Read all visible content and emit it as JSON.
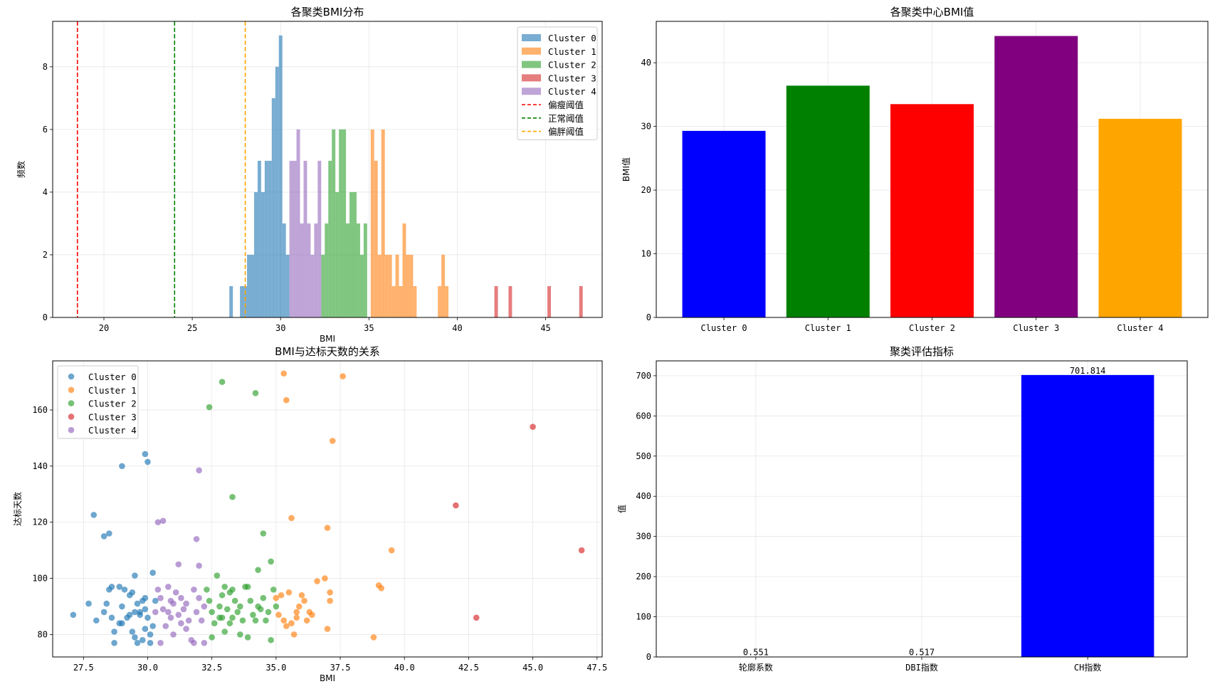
{
  "chart_data": [
    {
      "type": "histogram",
      "title": "各聚类BMI分布",
      "xlabel": "BMI",
      "ylabel": "频数",
      "xlim": [
        17.1,
        48.2
      ],
      "ylim": [
        0,
        9.45
      ],
      "xticks": [
        20,
        25,
        30,
        35,
        40,
        45
      ],
      "yticks": [
        0,
        2,
        4,
        6,
        8
      ],
      "grid": true,
      "legend_position": "top-right",
      "bin_width": 0.2,
      "series": [
        {
          "name": "Cluster 0",
          "color": "#1f77b4",
          "bins": [
            [
              27.1,
              1
            ],
            [
              27.7,
              1
            ],
            [
              27.9,
              1
            ],
            [
              28.1,
              2
            ],
            [
              28.3,
              2
            ],
            [
              28.5,
              4
            ],
            [
              28.7,
              5
            ],
            [
              28.9,
              4
            ],
            [
              29.1,
              5
            ],
            [
              29.3,
              5
            ],
            [
              29.5,
              7
            ],
            [
              29.7,
              8
            ],
            [
              29.9,
              9
            ],
            [
              30.1,
              3
            ],
            [
              30.3,
              2
            ]
          ]
        },
        {
          "name": "Cluster 1",
          "color": "#ff7f0e",
          "bins": [
            [
              35.1,
              6
            ],
            [
              35.3,
              5
            ],
            [
              35.5,
              2
            ],
            [
              35.7,
              6
            ],
            [
              35.9,
              2
            ],
            [
              36.1,
              2
            ],
            [
              36.3,
              1
            ],
            [
              36.5,
              2
            ],
            [
              36.7,
              1
            ],
            [
              36.9,
              3
            ],
            [
              37.1,
              2
            ],
            [
              37.3,
              2
            ],
            [
              37.5,
              1
            ],
            [
              38.9,
              1
            ],
            [
              39.1,
              2
            ],
            [
              39.3,
              1
            ]
          ]
        },
        {
          "name": "Cluster 2",
          "color": "#2ca02c",
          "bins": [
            [
              32.3,
              2
            ],
            [
              32.5,
              3
            ],
            [
              32.7,
              5
            ],
            [
              32.9,
              6
            ],
            [
              33.1,
              4
            ],
            [
              33.3,
              6
            ],
            [
              33.5,
              6
            ],
            [
              33.7,
              3
            ],
            [
              33.9,
              4
            ],
            [
              34.1,
              4
            ],
            [
              34.3,
              3
            ],
            [
              34.5,
              2
            ],
            [
              34.7,
              3
            ]
          ]
        },
        {
          "name": "Cluster 3",
          "color": "#d62728",
          "bins": [
            [
              42.1,
              1
            ],
            [
              42.9,
              1
            ],
            [
              45.1,
              1
            ],
            [
              46.9,
              1
            ]
          ]
        },
        {
          "name": "Cluster 4",
          "color": "#9467bd",
          "bins": [
            [
              30.5,
              5
            ],
            [
              30.7,
              5
            ],
            [
              30.9,
              6
            ],
            [
              31.1,
              3
            ],
            [
              31.3,
              5
            ],
            [
              31.5,
              3
            ],
            [
              31.7,
              2
            ],
            [
              31.9,
              3
            ],
            [
              32.1,
              5
            ]
          ]
        }
      ],
      "reference_lines": [
        {
          "name": "偏瘦阈值",
          "x": 18.5,
          "color": "#ff0000"
        },
        {
          "name": "正常阈值",
          "x": 24.0,
          "color": "#008000"
        },
        {
          "name": "偏胖阈值",
          "x": 28.0,
          "color": "#ffa500"
        }
      ]
    },
    {
      "type": "bar",
      "title": "各聚类中心BMI值",
      "xlabel": "",
      "ylabel": "BMI值",
      "ylim": [
        0,
        46.5
      ],
      "yticks": [
        0,
        10,
        20,
        30,
        40
      ],
      "grid": true,
      "categories": [
        "Cluster 0",
        "Cluster 1",
        "Cluster 2",
        "Cluster 3",
        "Cluster 4"
      ],
      "values": [
        29.3,
        36.4,
        33.5,
        44.2,
        31.2
      ],
      "colors": [
        "#0000ff",
        "#008000",
        "#ff0000",
        "#800080",
        "#ffa500"
      ]
    },
    {
      "type": "scatter",
      "title": "BMI与达标天数的关系",
      "xlabel": "BMI",
      "ylabel": "达标天数",
      "xlim": [
        26.3,
        47.7
      ],
      "ylim": [
        72,
        177.5
      ],
      "xticks": [
        "27.5",
        "30.0",
        "32.5",
        "35.0",
        "37.5",
        "40.0",
        "42.5",
        "45.0",
        "47.5"
      ],
      "yticks": [
        80,
        100,
        120,
        140,
        160
      ],
      "grid": true,
      "legend_position": "top-left",
      "series": [
        {
          "name": "Cluster 0",
          "color": "#1f77b4",
          "points": [
            [
              27.1,
              87
            ],
            [
              27.9,
              122.6
            ],
            [
              28.3,
              115
            ],
            [
              28.5,
              116
            ],
            [
              29.0,
              140
            ],
            [
              29.9,
              144.3
            ],
            [
              30.0,
              141.5
            ],
            [
              27.7,
              91
            ],
            [
              28.0,
              85
            ],
            [
              28.3,
              88
            ],
            [
              28.4,
              91
            ],
            [
              28.5,
              96
            ],
            [
              28.6,
              97
            ],
            [
              28.6,
              86
            ],
            [
              28.7,
              81
            ],
            [
              28.7,
              77
            ],
            [
              28.9,
              84
            ],
            [
              29.0,
              84
            ],
            [
              29.0,
              90
            ],
            [
              29.1,
              96
            ],
            [
              29.2,
              86
            ],
            [
              29.3,
              87
            ],
            [
              29.3,
              94
            ],
            [
              29.4,
              95
            ],
            [
              29.4,
              81
            ],
            [
              29.5,
              79
            ],
            [
              29.5,
              88
            ],
            [
              29.6,
              77
            ],
            [
              29.6,
              91
            ],
            [
              29.7,
              88
            ],
            [
              29.7,
              87
            ],
            [
              29.8,
              92
            ],
            [
              29.8,
              78
            ],
            [
              29.9,
              82
            ],
            [
              29.9,
              93
            ],
            [
              30.0,
              86
            ],
            [
              30.1,
              77
            ],
            [
              30.1,
              80
            ],
            [
              30.2,
              102
            ],
            [
              30.2,
              83
            ],
            [
              30.3,
              92
            ],
            [
              29.5,
              101
            ],
            [
              29.9,
              89
            ],
            [
              28.9,
              97
            ]
          ]
        },
        {
          "name": "Cluster 1",
          "color": "#ff7f0e",
          "points": [
            [
              35.3,
              173
            ],
            [
              35.4,
              163.5
            ],
            [
              37.6,
              172
            ],
            [
              37.2,
              149
            ],
            [
              35.6,
              121.5
            ],
            [
              37.0,
              118
            ],
            [
              39.5,
              110
            ],
            [
              35.0,
              93
            ],
            [
              35.1,
              87
            ],
            [
              35.2,
              94
            ],
            [
              35.3,
              85
            ],
            [
              35.4,
              83
            ],
            [
              35.5,
              95
            ],
            [
              35.7,
              80
            ],
            [
              35.8,
              88
            ],
            [
              35.8,
              86
            ],
            [
              35.9,
              90
            ],
            [
              36.0,
              94
            ],
            [
              36.1,
              92
            ],
            [
              36.2,
              85
            ],
            [
              36.3,
              88
            ],
            [
              36.6,
              99
            ],
            [
              36.9,
              100
            ],
            [
              37.1,
              95
            ],
            [
              37.1,
              92
            ],
            [
              37.0,
              82
            ],
            [
              38.8,
              79
            ],
            [
              39.0,
              97.5
            ],
            [
              39.1,
              96.5
            ],
            [
              35.6,
              84
            ],
            [
              36.4,
              87
            ]
          ]
        },
        {
          "name": "Cluster 2",
          "color": "#2ca02c",
          "points": [
            [
              32.9,
              170
            ],
            [
              34.2,
              166
            ],
            [
              32.4,
              161
            ],
            [
              33.3,
              129
            ],
            [
              34.5,
              116
            ],
            [
              34.8,
              106
            ],
            [
              32.3,
              96
            ],
            [
              32.4,
              92
            ],
            [
              32.5,
              88
            ],
            [
              32.6,
              84
            ],
            [
              32.7,
              101
            ],
            [
              32.8,
              90
            ],
            [
              32.8,
              86
            ],
            [
              32.9,
              94
            ],
            [
              33.0,
              97
            ],
            [
              33.0,
              81
            ],
            [
              33.1,
              89
            ],
            [
              33.2,
              95
            ],
            [
              33.3,
              96
            ],
            [
              33.3,
              86
            ],
            [
              33.4,
              92
            ],
            [
              33.5,
              88
            ],
            [
              33.6,
              90
            ],
            [
              33.7,
              85
            ],
            [
              33.8,
              97
            ],
            [
              33.9,
              79
            ],
            [
              34.0,
              92
            ],
            [
              34.1,
              87
            ],
            [
              34.2,
              85
            ],
            [
              34.3,
              103
            ],
            [
              34.4,
              89
            ],
            [
              34.5,
              93
            ],
            [
              34.6,
              85
            ],
            [
              34.7,
              88
            ],
            [
              34.8,
              78
            ],
            [
              34.9,
              96
            ],
            [
              35.0,
              90
            ],
            [
              32.5,
              79
            ],
            [
              33.2,
              84
            ],
            [
              33.9,
              97
            ],
            [
              34.3,
              90
            ],
            [
              32.9,
              86
            ],
            [
              33.6,
              80
            ]
          ]
        },
        {
          "name": "Cluster 3",
          "color": "#d62728",
          "points": [
            [
              45.0,
              154
            ],
            [
              42.0,
              126
            ],
            [
              46.9,
              110
            ],
            [
              42.8,
              86
            ]
          ]
        },
        {
          "name": "Cluster 4",
          "color": "#9467bd",
          "points": [
            [
              32.0,
              138.5
            ],
            [
              30.4,
              120
            ],
            [
              30.6,
              120.5
            ],
            [
              31.9,
              114
            ],
            [
              31.2,
              105
            ],
            [
              32.0,
              104.5
            ],
            [
              30.4,
              96
            ],
            [
              30.5,
              93
            ],
            [
              30.6,
              89
            ],
            [
              30.7,
              83
            ],
            [
              30.8,
              97
            ],
            [
              30.8,
              88
            ],
            [
              30.9,
              86
            ],
            [
              31.0,
              91
            ],
            [
              31.0,
              80
            ],
            [
              31.1,
              95
            ],
            [
              31.2,
              87
            ],
            [
              31.3,
              93
            ],
            [
              31.3,
              84
            ],
            [
              31.4,
              89
            ],
            [
              31.5,
              91
            ],
            [
              31.6,
              85
            ],
            [
              31.7,
              78
            ],
            [
              31.8,
              96
            ],
            [
              31.8,
              77
            ],
            [
              31.9,
              88
            ],
            [
              32.0,
              93
            ],
            [
              32.1,
              85
            ],
            [
              32.2,
              77
            ],
            [
              32.2,
              90
            ],
            [
              30.3,
              88
            ],
            [
              30.5,
              77
            ],
            [
              31.5,
              82
            ],
            [
              30.9,
              92
            ]
          ]
        }
      ]
    },
    {
      "type": "bar",
      "title": "聚类评估指标",
      "xlabel": "",
      "ylabel": "值",
      "ylim": [
        0,
        737
      ],
      "yticks": [
        0,
        100,
        200,
        300,
        400,
        500,
        600,
        700
      ],
      "grid": true,
      "categories": [
        "轮廓系数",
        "DBI指数",
        "CH指数"
      ],
      "values": [
        0.551,
        0.517,
        701.814
      ],
      "data_labels": [
        "0.551",
        "0.517",
        "701.814"
      ],
      "colors": [
        "#0000ff",
        "#0000ff",
        "#0000ff"
      ]
    }
  ]
}
